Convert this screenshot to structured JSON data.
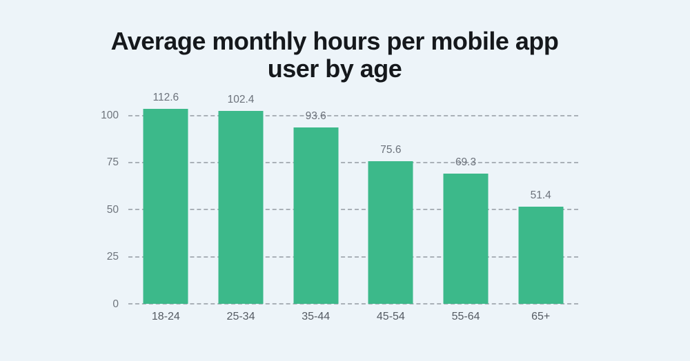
{
  "chart_data": {
    "type": "bar",
    "title": "Average monthly hours per mobile app user by age",
    "categories": [
      "18-24",
      "25-34",
      "35-44",
      "45-54",
      "55-64",
      "65+"
    ],
    "values": [
      112.6,
      102.4,
      93.6,
      75.6,
      69.3,
      51.4
    ],
    "value_labels": [
      "112.6",
      "102.4",
      "93.6",
      "75.6",
      "69.3",
      "51.4"
    ],
    "y_ticks": [
      0,
      25,
      50,
      75,
      100
    ],
    "ylim": [
      0,
      103.5
    ],
    "xlabel": "",
    "ylabel": "",
    "grid": "horizontal-dashed",
    "legend": "none",
    "bars_clipped_at_plot_top": true,
    "colors": {
      "background": "#edf4f9",
      "bar": "#3cb98a",
      "title_text": "#15181c",
      "grid_line": "#a9b0b7",
      "value_label_text": "#6b717a",
      "y_tick_text": "#6e747c",
      "x_tick_text": "#545a62"
    }
  }
}
